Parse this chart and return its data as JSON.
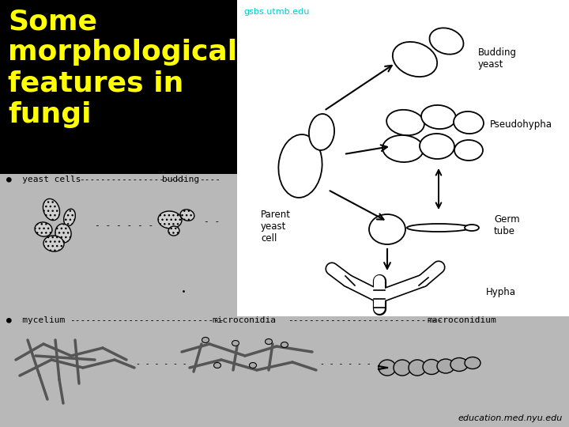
{
  "bg_black": "#000000",
  "bg_gray": "#b8b8b8",
  "bg_white": "#ffffff",
  "title_text": "Some\nmorphological\nfeatures in\nfungi",
  "title_color": "#ffff00",
  "gsbs_text": "gsbs.utmb.edu",
  "gsbs_color": "#00cccc",
  "footer_text": "education.med.nyu.edu",
  "footer_color": "#000000",
  "label_yeast_line": "●  yeast cells--------------------  budding----",
  "label_mycelium_line": "●  mycelium-----------------------------microconidia-----------------------------macroconidium",
  "label_budding_yeast": "Budding\nyeast",
  "label_pseudohypha": "Pseudohypha",
  "label_parent": "Parent\nyeast\ncell",
  "label_germ": "Germ\ntube",
  "label_hypha": "Hypha",
  "figsize": [
    7.2,
    5.4
  ],
  "dpi": 100
}
